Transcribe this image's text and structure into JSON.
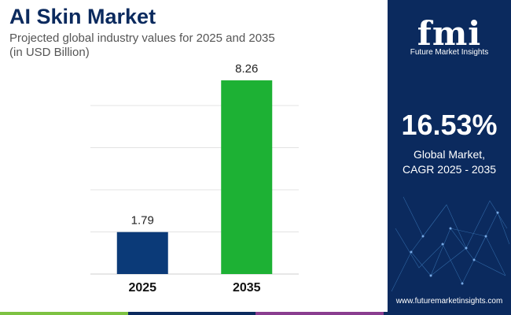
{
  "header": {
    "title": "AI Skin Market",
    "subtitle_line1": "Projected global industry values for 2025 and 2035",
    "subtitle_line2": "(in USD Billion)"
  },
  "chart_data": {
    "type": "bar",
    "categories": [
      "2025",
      "2035"
    ],
    "values": [
      1.79,
      8.26
    ],
    "value_labels": [
      "1.79",
      "8.26"
    ],
    "bar_colors": [
      "#0b3a78",
      "#1db134"
    ],
    "ylim": [
      0,
      9
    ],
    "grid": true,
    "legend": "none"
  },
  "side_panel": {
    "logo_text": "fmi",
    "logo_subtext": "Future Market Insights",
    "cagr_value": "16.53%",
    "cagr_label_line1": "Global Market,",
    "cagr_label_line2": "CAGR 2025 - 2035",
    "website": "www.futuremarketinsights.com"
  },
  "colors": {
    "title": "#0b2a5e",
    "panel_bg": "#0b2a5e",
    "bottom_bar": [
      "#7dc242",
      "#0b2a5e",
      "#8a3d8f",
      "#0b2a5e"
    ]
  }
}
